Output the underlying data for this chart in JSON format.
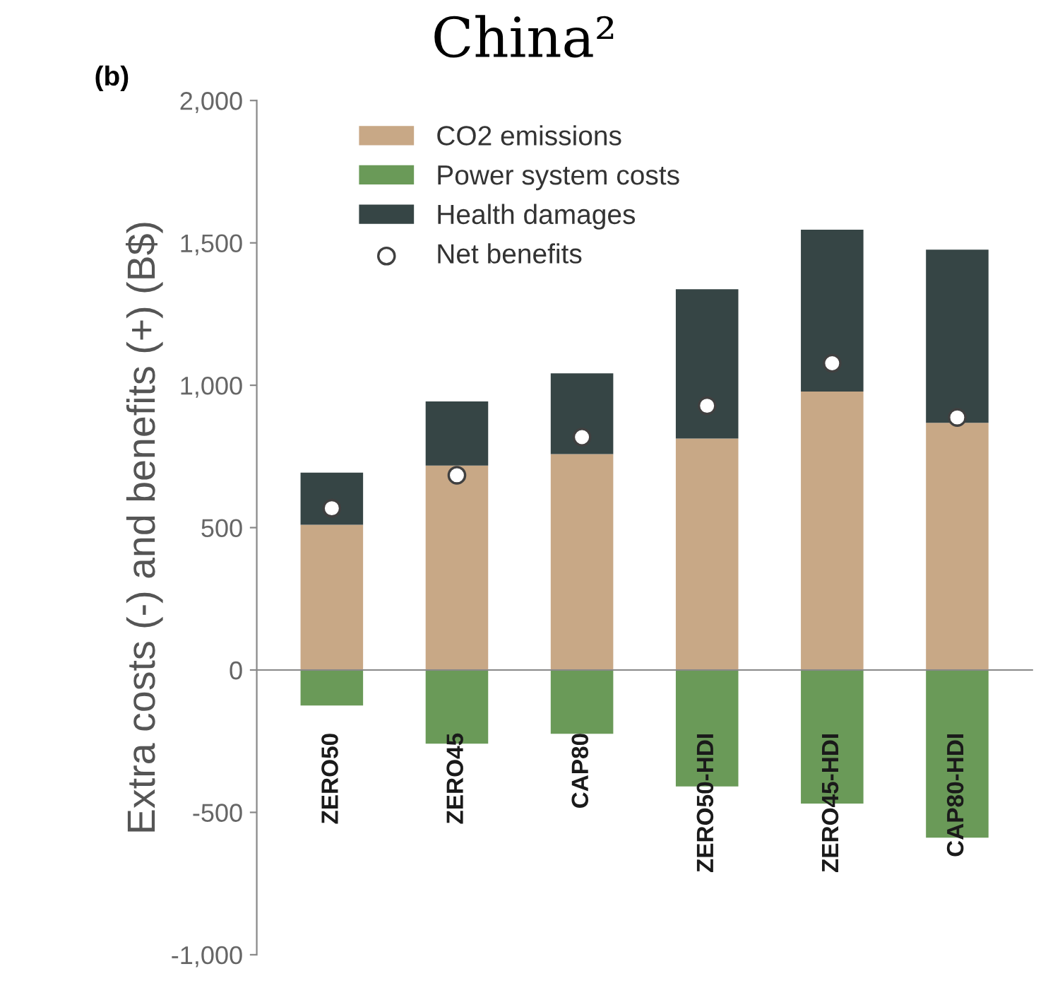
{
  "chart_data": {
    "type": "bar",
    "title": "China²",
    "ylabel": "Extra costs (-) and benefits (+) (B$)",
    "annotations": [
      "(b)"
    ],
    "categories": [
      "ZERO50",
      "ZERO45",
      "CAP80",
      "ZERO50-HDI",
      "ZERO45-HDI",
      "CAP80-HDI"
    ],
    "stacked": true,
    "series": [
      {
        "name": "CO2 emissions",
        "color": "#c8a886",
        "values": [
          510,
          718,
          758,
          813,
          978,
          868
        ]
      },
      {
        "name": "Power system costs",
        "color": "#6a9a58",
        "values": [
          -125,
          -259,
          -224,
          -409,
          -469,
          -589
        ]
      },
      {
        "name": "Health damages",
        "color": "#364545",
        "values": [
          183,
          225,
          284,
          524,
          568,
          608
        ]
      },
      {
        "name": "Net benefits",
        "type": "scatter",
        "marker": "circle",
        "color": "#ffffff",
        "x": [
          "ZERO50",
          "ZERO45",
          "CAP80",
          "ZERO50-HDI",
          "ZERO45-HDI",
          "CAP80-HDI"
        ],
        "values": [
          568,
          684,
          818,
          928,
          1077,
          887
        ]
      }
    ],
    "ylim": [
      -1000,
      2000
    ],
    "yticks": [
      {
        "value": -1000,
        "label": "-1,000"
      },
      {
        "value": -500,
        "label": "-500"
      },
      0,
      500,
      {
        "value": 1000,
        "label": "1,000"
      },
      {
        "value": 1500,
        "label": "1,500"
      },
      {
        "value": 2000,
        "label": "2,000"
      }
    ],
    "legend": "top left"
  }
}
